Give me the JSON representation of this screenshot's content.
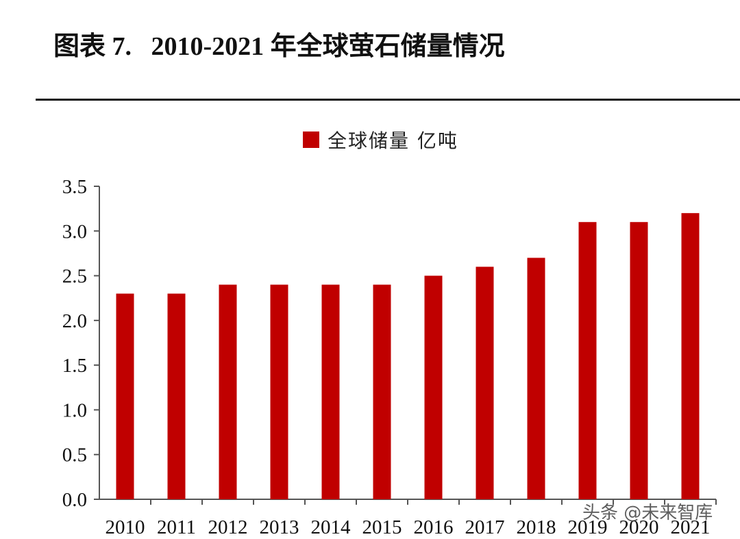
{
  "title": "图表 7.   2010-2021 年全球萤石储量情况",
  "watermark": "头条 @未来智库",
  "colors": {
    "bar": "#C00000",
    "axis": "#555555",
    "text": "#111111"
  },
  "chart_data": {
    "type": "bar",
    "title": "图表 7.   2010-2021 年全球萤石储量情况",
    "categories": [
      "2010",
      "2011",
      "2012",
      "2013",
      "2014",
      "2015",
      "2016",
      "2017",
      "2018",
      "2019",
      "2020",
      "2021"
    ],
    "series": [
      {
        "name": "全球储量 亿吨",
        "values": [
          2.3,
          2.3,
          2.4,
          2.4,
          2.4,
          2.4,
          2.5,
          2.6,
          2.7,
          3.1,
          3.1,
          3.2
        ]
      }
    ],
    "yticks": [
      "0.0",
      "0.5",
      "1.0",
      "1.5",
      "2.0",
      "2.5",
      "3.0",
      "3.5"
    ],
    "ylim": [
      0,
      3.5
    ],
    "grid": false,
    "legend": "top-center"
  }
}
